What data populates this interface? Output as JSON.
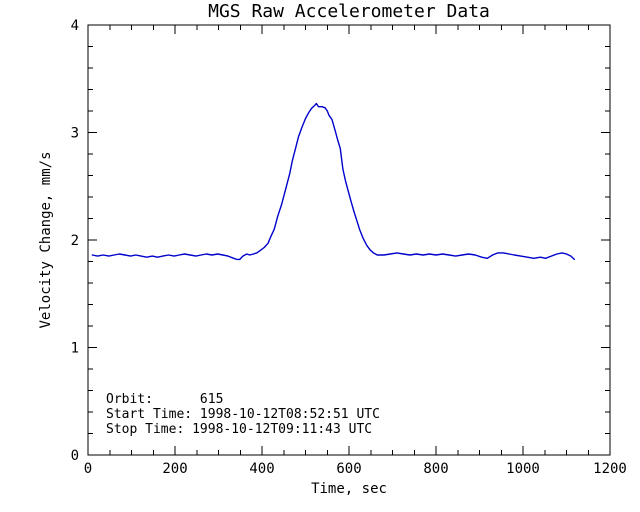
{
  "page": {
    "background": "#ffffff"
  },
  "chart_data": {
    "type": "line",
    "title": "MGS Raw Accelerometer Data",
    "xlabel": "Time, sec",
    "ylabel": "Velocity Change, mm/s",
    "xlim": [
      0,
      1200
    ],
    "ylim": [
      0,
      4
    ],
    "x_major_ticks": [
      0,
      200,
      400,
      600,
      800,
      1000,
      1200
    ],
    "y_major_ticks": [
      0,
      1,
      2,
      3,
      4
    ],
    "x_minor_step": 50,
    "y_minor_step": 0.2,
    "grid": false,
    "legend": "none",
    "colors": {
      "line": "#0000cc",
      "axis": "#000000",
      "text": "#000000",
      "background": "#ffffff"
    },
    "series": [
      {
        "name": "velocity-change",
        "x": [
          10,
          22,
          35,
          48,
          60,
          72,
          85,
          98,
          110,
          122,
          135,
          148,
          160,
          172,
          185,
          198,
          210,
          222,
          235,
          248,
          260,
          272,
          285,
          298,
          310,
          322,
          335,
          342,
          349,
          356,
          365,
          372,
          380,
          388,
          395,
          405,
          414,
          420,
          428,
          436,
          445,
          456,
          464,
          470,
          477,
          484,
          492,
          500,
          508,
          515,
          521,
          525,
          530,
          538,
          545,
          550,
          554,
          561,
          568,
          574,
          580,
          586,
          592,
          598,
          604,
          611,
          618,
          625,
          632,
          641,
          648,
          656,
          665,
          680,
          695,
          710,
          725,
          740,
          755,
          770,
          785,
          800,
          815,
          830,
          845,
          860,
          875,
          890,
          905,
          918,
          930,
          942,
          955,
          968,
          980,
          995,
          1010,
          1025,
          1040,
          1052,
          1065,
          1078,
          1090,
          1100,
          1110,
          1118
        ],
        "y": [
          1.86,
          1.85,
          1.86,
          1.85,
          1.86,
          1.87,
          1.86,
          1.85,
          1.86,
          1.85,
          1.84,
          1.85,
          1.84,
          1.85,
          1.86,
          1.85,
          1.86,
          1.87,
          1.86,
          1.85,
          1.86,
          1.87,
          1.86,
          1.87,
          1.86,
          1.85,
          1.83,
          1.82,
          1.82,
          1.85,
          1.87,
          1.86,
          1.87,
          1.88,
          1.9,
          1.93,
          1.97,
          2.03,
          2.1,
          2.22,
          2.33,
          2.5,
          2.62,
          2.74,
          2.85,
          2.96,
          3.05,
          3.13,
          3.19,
          3.23,
          3.25,
          3.27,
          3.24,
          3.24,
          3.23,
          3.2,
          3.16,
          3.12,
          3.02,
          2.93,
          2.85,
          2.66,
          2.55,
          2.46,
          2.37,
          2.27,
          2.18,
          2.09,
          2.02,
          1.95,
          1.91,
          1.88,
          1.86,
          1.86,
          1.87,
          1.88,
          1.87,
          1.86,
          1.87,
          1.86,
          1.87,
          1.86,
          1.87,
          1.86,
          1.85,
          1.86,
          1.87,
          1.86,
          1.84,
          1.83,
          1.86,
          1.88,
          1.88,
          1.87,
          1.86,
          1.85,
          1.84,
          1.83,
          1.84,
          1.83,
          1.85,
          1.87,
          1.88,
          1.87,
          1.85,
          1.82
        ]
      }
    ],
    "annotations": [
      {
        "id": "orbit",
        "text": "Orbit:      615"
      },
      {
        "id": "start-time",
        "text": "Start Time: 1998-10-12T08:52:51 UTC"
      },
      {
        "id": "stop-time",
        "text": "Stop Time: 1998-10-12T09:11:43 UTC"
      }
    ]
  }
}
